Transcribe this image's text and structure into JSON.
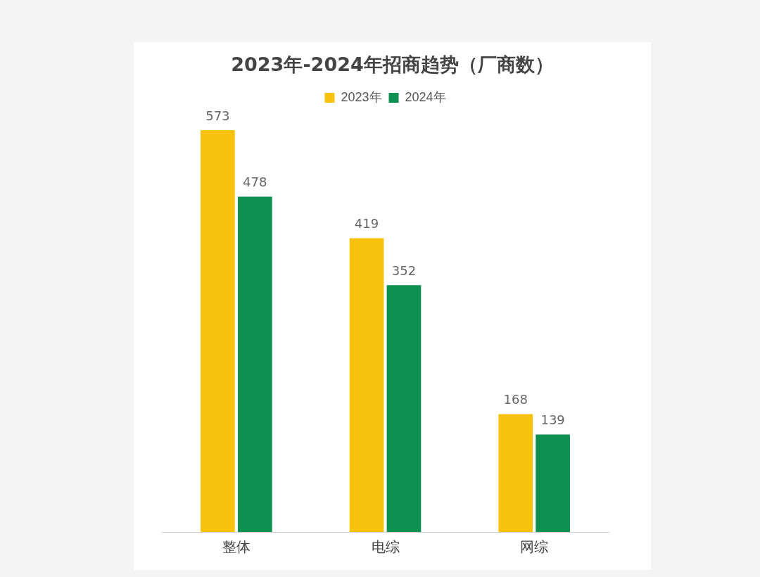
{
  "chart_data": {
    "type": "bar",
    "title": "2023年-2024年招商趋势（厂商数）",
    "categories": [
      "整体",
      "电综",
      "网综"
    ],
    "series": [
      {
        "name": "2023年",
        "color": "#f8c20c",
        "values": [
          573,
          419,
          168
        ]
      },
      {
        "name": "2024年",
        "color": "#0e9150",
        "values": [
          478,
          352,
          139
        ]
      }
    ],
    "data_labels": true,
    "legend": "top",
    "grid": false
  }
}
